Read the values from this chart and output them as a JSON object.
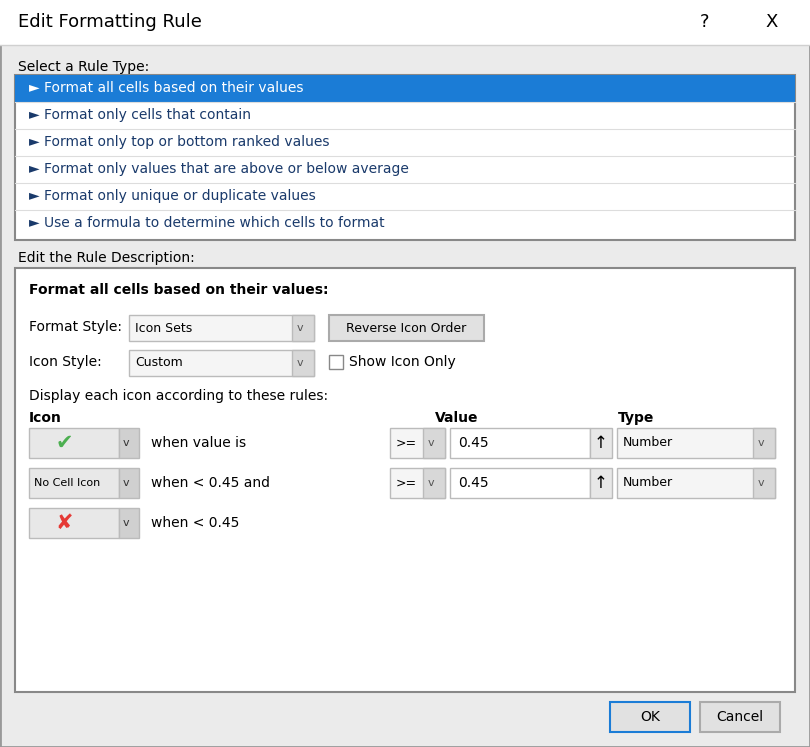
{
  "title": "Edit Formatting Rule",
  "bg_color": "#EBEBEB",
  "white": "#FFFFFF",
  "list_bg": "#FFFFFF",
  "selected_color": "#1B7CD6",
  "selected_text_color": "#FFFFFF",
  "text_color": "#000000",
  "text_color_blue": "#1B3A6B",
  "rule_types": [
    "Format all cells based on their values",
    "Format only cells that contain",
    "Format only top or bottom ranked values",
    "Format only values that are above or below average",
    "Format only unique or duplicate values",
    "Use a formula to determine which cells to format"
  ],
  "select_label": "Select a Rule Type:",
  "edit_label": "Edit the Rule Description:",
  "format_cells_label": "Format all cells based on their values:",
  "format_style_label": "Format Style:",
  "format_style_value": "Icon Sets",
  "icon_style_label": "Icon Style:",
  "icon_style_value": "Custom",
  "reverse_btn": "Reverse Icon Order",
  "show_icon_only": "Show Icon Only",
  "display_label": "Display each icon according to these rules:",
  "icon_col": "Icon",
  "value_col": "Value",
  "type_col": "Type",
  "row1_text": "when value is",
  "row1_op": ">=",
  "row1_val": "0.45",
  "row1_type": "Number",
  "row2_text": "when < 0.45 and",
  "row2_op": ">=",
  "row2_val": "0.45",
  "row2_type": "Number",
  "row3_text": "when < 0.45",
  "ok_btn": "OK",
  "cancel_btn": "Cancel",
  "ok_border": "#1B7CD6",
  "cancel_border": "#AAAAAA",
  "dialog_border": "#999999",
  "inner_border": "#BBBBBB",
  "separator_color": "#D0D0D0",
  "dropdown_bg": "#F5F5F5",
  "icon_box_bg": "#E8E8E8",
  "arrow_bg": "#D0D0D0",
  "check_color": "#4CAF50",
  "cross_color": "#E53935"
}
